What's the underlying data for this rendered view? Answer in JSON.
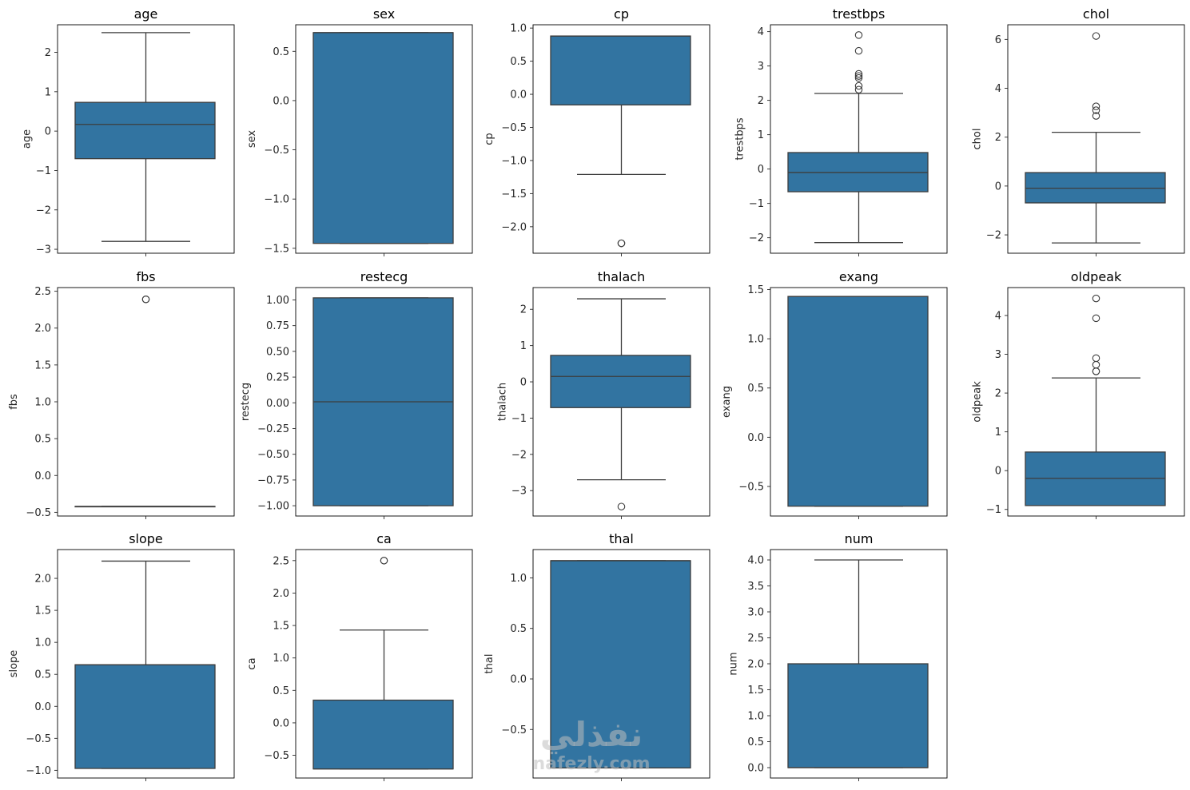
{
  "style": {
    "box_fill": "#3274a1",
    "line_color": "#3d3d3d",
    "axes_edge": "#000000",
    "tick_color": "#262626"
  },
  "watermark": {
    "main": "نفذلي",
    "sub": "nafezly.com"
  },
  "chart_data": [
    {
      "type": "box",
      "title": "age",
      "ylabel": "age",
      "ylim": [
        -3.1,
        2.7
      ],
      "yticks": [
        -3,
        -2,
        -1,
        0,
        1,
        2
      ],
      "tick_labels": [
        "−3",
        "−2",
        "−1",
        "0",
        "1",
        "2"
      ],
      "box": {
        "whislo": -2.8,
        "q1": -0.7,
        "med": 0.17,
        "q3": 0.73,
        "whishi": 2.5
      },
      "fliers": []
    },
    {
      "type": "box",
      "title": "sex",
      "ylabel": "sex",
      "ylim": [
        -1.55,
        0.77
      ],
      "yticks": [
        -1.5,
        -1.0,
        -0.5,
        0.0,
        0.5
      ],
      "tick_labels": [
        "−1.5",
        "−1.0",
        "−0.5",
        "0.0",
        "0.5"
      ],
      "box": {
        "whislo": -1.45,
        "q1": -1.45,
        "med": 0.69,
        "q3": 0.69,
        "whishi": 0.69
      },
      "fliers": []
    },
    {
      "type": "box",
      "title": "cp",
      "ylabel": "cp",
      "ylim": [
        -2.4,
        1.05
      ],
      "yticks": [
        -2.0,
        -1.5,
        -1.0,
        -0.5,
        0.0,
        0.5,
        1.0
      ],
      "tick_labels": [
        "−2.0",
        "−1.5",
        "−1.0",
        "−0.5",
        "0.0",
        "0.5",
        "1.0"
      ],
      "box": {
        "whislo": -1.21,
        "q1": -0.16,
        "med": 0.88,
        "q3": 0.88,
        "whishi": 0.88
      },
      "fliers": [
        -2.25,
        -2.25
      ]
    },
    {
      "type": "box",
      "title": "trestbps",
      "ylabel": "trestbps",
      "ylim": [
        -2.45,
        4.2
      ],
      "yticks": [
        -2,
        -1,
        0,
        1,
        2,
        3,
        4
      ],
      "tick_labels": [
        "−2",
        "−1",
        "0",
        "1",
        "2",
        "3",
        "4"
      ],
      "box": {
        "whislo": -2.14,
        "q1": -0.66,
        "med": -0.1,
        "q3": 0.48,
        "whishi": 2.2
      },
      "fliers": [
        2.31,
        2.42,
        2.65,
        2.71,
        2.77,
        3.44,
        3.9
      ]
    },
    {
      "type": "box",
      "title": "chol",
      "ylabel": "chol",
      "ylim": [
        -2.75,
        6.6
      ],
      "yticks": [
        -2,
        0,
        2,
        4,
        6
      ],
      "tick_labels": [
        "−2",
        "0",
        "2",
        "4",
        "6"
      ],
      "box": {
        "whislo": -2.33,
        "q1": -0.69,
        "med": -0.09,
        "q3": 0.55,
        "whishi": 2.2
      },
      "fliers": [
        2.87,
        3.1,
        3.26,
        6.14
      ]
    },
    {
      "type": "box",
      "title": "fbs",
      "ylabel": "fbs",
      "ylim": [
        -0.55,
        2.55
      ],
      "yticks": [
        -0.5,
        0.0,
        0.5,
        1.0,
        1.5,
        2.0,
        2.5
      ],
      "tick_labels": [
        "−0.5",
        "0.0",
        "0.5",
        "1.0",
        "1.5",
        "2.0",
        "2.5"
      ],
      "box": {
        "whislo": -0.42,
        "q1": -0.42,
        "med": -0.42,
        "q3": -0.42,
        "whishi": -0.42
      },
      "fliers": [
        2.39,
        2.39
      ]
    },
    {
      "type": "box",
      "title": "restecg",
      "ylabel": "restecg",
      "ylim": [
        -1.1,
        1.12
      ],
      "yticks": [
        -1.0,
        -0.75,
        -0.5,
        -0.25,
        0.0,
        0.25,
        0.5,
        0.75,
        1.0
      ],
      "tick_labels": [
        "−1.00",
        "−0.75",
        "−0.50",
        "−0.25",
        "0.00",
        "0.25",
        "0.50",
        "0.75",
        "1.00"
      ],
      "box": {
        "whislo": -1.0,
        "q1": -1.0,
        "med": 0.01,
        "q3": 1.02,
        "whishi": 1.02
      },
      "fliers": []
    },
    {
      "type": "box",
      "title": "thalach",
      "ylabel": "thalach",
      "ylim": [
        -3.7,
        2.6
      ],
      "yticks": [
        -3,
        -2,
        -1,
        0,
        1,
        2
      ],
      "tick_labels": [
        "−3",
        "−2",
        "−1",
        "0",
        "1",
        "2"
      ],
      "box": {
        "whislo": -2.7,
        "q1": -0.71,
        "med": 0.15,
        "q3": 0.73,
        "whishi": 2.29
      },
      "fliers": [
        -3.44
      ]
    },
    {
      "type": "box",
      "title": "exang",
      "ylabel": "exang",
      "ylim": [
        -0.8,
        1.52
      ],
      "yticks": [
        -0.5,
        0.0,
        0.5,
        1.0,
        1.5
      ],
      "tick_labels": [
        "−0.5",
        "0.0",
        "0.5",
        "1.0",
        "1.5"
      ],
      "box": {
        "whislo": -0.7,
        "q1": -0.7,
        "med": 1.43,
        "q3": 1.43,
        "whishi": 1.43
      },
      "fliers": []
    },
    {
      "type": "box",
      "title": "oldpeak",
      "ylabel": "oldpeak",
      "ylim": [
        -1.17,
        4.72
      ],
      "yticks": [
        -1,
        0,
        1,
        2,
        3,
        4
      ],
      "tick_labels": [
        "−1",
        "0",
        "1",
        "2",
        "3",
        "4"
      ],
      "box": {
        "whislo": -0.9,
        "q1": -0.9,
        "med": -0.2,
        "q3": 0.48,
        "whishi": 2.39
      },
      "fliers": [
        2.56,
        2.56,
        2.73,
        2.9,
        3.93,
        4.44
      ]
    },
    {
      "type": "box",
      "title": "slope",
      "ylabel": "slope",
      "ylim": [
        -1.12,
        2.45
      ],
      "yticks": [
        -1.0,
        -0.5,
        0.0,
        0.5,
        1.0,
        1.5,
        2.0
      ],
      "tick_labels": [
        "−1.0",
        "−0.5",
        "0.0",
        "0.5",
        "1.0",
        "1.5",
        "2.0"
      ],
      "box": {
        "whislo": -0.97,
        "q1": -0.97,
        "med": 0.65,
        "q3": 0.65,
        "whishi": 2.27
      },
      "fliers": []
    },
    {
      "type": "box",
      "title": "ca",
      "ylabel": "ca",
      "ylim": [
        -0.85,
        2.67
      ],
      "yticks": [
        -0.5,
        0.0,
        0.5,
        1.0,
        1.5,
        2.0,
        2.5
      ],
      "tick_labels": [
        "−0.5",
        "0.0",
        "0.5",
        "1.0",
        "1.5",
        "2.0",
        "2.5"
      ],
      "box": {
        "whislo": -0.71,
        "q1": -0.71,
        "med": -0.71,
        "q3": 0.35,
        "whishi": 1.43
      },
      "fliers": [
        2.5,
        2.5
      ]
    },
    {
      "type": "box",
      "title": "thal",
      "ylabel": "thal",
      "ylim": [
        -0.98,
        1.28
      ],
      "yticks": [
        -0.5,
        0.0,
        0.5,
        1.0
      ],
      "tick_labels": [
        "−0.5",
        "0.0",
        "0.5",
        "1.0"
      ],
      "box": {
        "whislo": -0.88,
        "q1": -0.88,
        "med": 1.17,
        "q3": 1.17,
        "whishi": 1.17
      },
      "fliers": []
    },
    {
      "type": "box",
      "title": "num",
      "ylabel": "num",
      "ylim": [
        -0.2,
        4.2
      ],
      "yticks": [
        0.0,
        0.5,
        1.0,
        1.5,
        2.0,
        2.5,
        3.0,
        3.5,
        4.0
      ],
      "tick_labels": [
        "0.0",
        "0.5",
        "1.0",
        "1.5",
        "2.0",
        "2.5",
        "3.0",
        "3.5",
        "4.0"
      ],
      "box": {
        "whislo": 0.0,
        "q1": 0.0,
        "med": 0.0,
        "q3": 2.0,
        "whishi": 4.0
      },
      "fliers": []
    }
  ]
}
